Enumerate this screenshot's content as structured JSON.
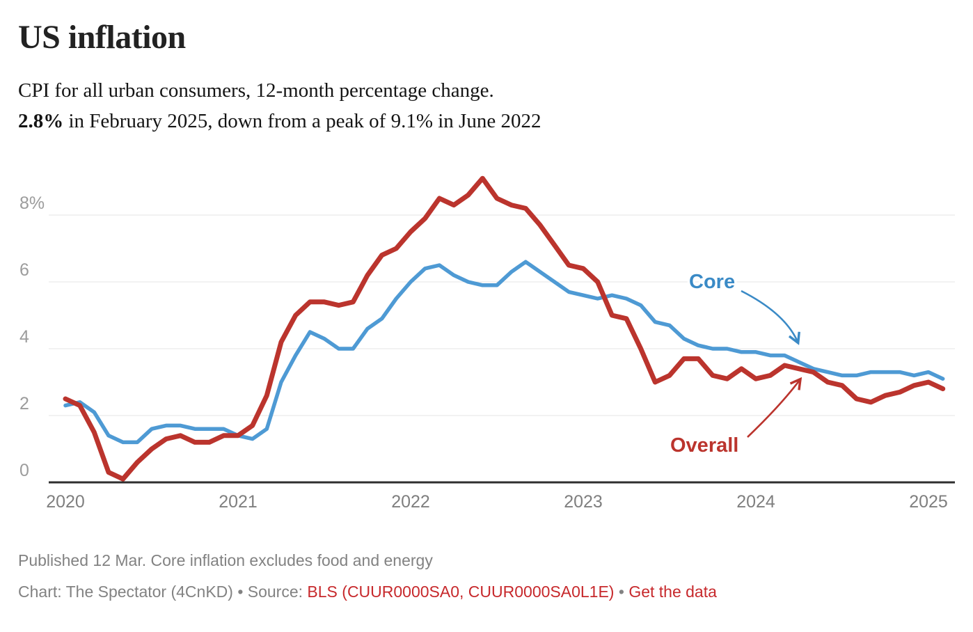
{
  "header": {
    "title": "US inflation",
    "subtitle_line1": "CPI for all urban consumers, 12-month percentage change.",
    "subtitle_bold": "2.8%",
    "subtitle_rest": " in February 2025, down from a peak of 9.1% in June 2022"
  },
  "chart_data": {
    "type": "line",
    "title": "US inflation",
    "subtitle": "CPI for all urban consumers, 12-month percentage change. 2.8% in February 2025, down from a peak of 9.1% in June 2022",
    "x_axis": {
      "interval": "monthly",
      "start": "2020-01",
      "end": "2025-02",
      "tick_labels": [
        "2020",
        "2021",
        "2022",
        "2023",
        "2024",
        "2025"
      ]
    },
    "y_axis": {
      "unit": "percent",
      "range": [
        0,
        9.3
      ],
      "ticks": [
        {
          "value": 8,
          "label": "8%"
        },
        {
          "value": 6,
          "label": "6"
        },
        {
          "value": 4,
          "label": "4"
        },
        {
          "value": 2,
          "label": "2"
        },
        {
          "value": 0,
          "label": "0"
        }
      ]
    },
    "grid": "horizontal",
    "legend_position": "inline-annotations",
    "series": [
      {
        "name": "Core",
        "color": "#4e9ad4",
        "values": [
          2.3,
          2.4,
          2.1,
          1.4,
          1.2,
          1.2,
          1.6,
          1.7,
          1.7,
          1.6,
          1.6,
          1.6,
          1.4,
          1.3,
          1.6,
          3.0,
          3.8,
          4.5,
          4.3,
          4.0,
          4.0,
          4.6,
          4.9,
          5.5,
          6.0,
          6.4,
          6.5,
          6.2,
          6.0,
          5.9,
          5.9,
          6.3,
          6.6,
          6.3,
          6.0,
          5.7,
          5.6,
          5.5,
          5.6,
          5.5,
          5.3,
          4.8,
          4.7,
          4.3,
          4.1,
          4.0,
          4.0,
          3.9,
          3.9,
          3.8,
          3.8,
          3.6,
          3.4,
          3.3,
          3.2,
          3.2,
          3.3,
          3.3,
          3.3,
          3.2,
          3.3,
          3.1
        ]
      },
      {
        "name": "Overall",
        "color": "#bb342d",
        "values": [
          2.5,
          2.3,
          1.5,
          0.3,
          0.1,
          0.6,
          1.0,
          1.3,
          1.4,
          1.2,
          1.2,
          1.4,
          1.4,
          1.7,
          2.6,
          4.2,
          5.0,
          5.4,
          5.4,
          5.3,
          5.4,
          6.2,
          6.8,
          7.0,
          7.5,
          7.9,
          8.5,
          8.3,
          8.6,
          9.1,
          8.5,
          8.3,
          8.2,
          7.7,
          7.1,
          6.5,
          6.4,
          6.0,
          5.0,
          4.9,
          4.0,
          3.0,
          3.2,
          3.7,
          3.7,
          3.2,
          3.1,
          3.4,
          3.1,
          3.2,
          3.5,
          3.4,
          3.3,
          3.0,
          2.9,
          2.5,
          2.4,
          2.6,
          2.7,
          2.9,
          3.0,
          2.8
        ]
      }
    ],
    "annotations": [
      {
        "label": "Core",
        "color": "#3a8ac6",
        "arrow": "curved, pointing down-right to Core line in 2024"
      },
      {
        "label": "Overall",
        "color": "#bb342d",
        "arrow": "curved, pointing up-right to Overall line in 2024"
      }
    ]
  },
  "footer": {
    "footnote": "Published 12 Mar. Core inflation excludes food and energy",
    "attribution_prefix": "Chart: The Spectator (4CnKD) • Source: ",
    "source_link": "BLS (CUUR0000SA0, CUUR0000SA0L1E)",
    "separator": " • ",
    "data_link": "Get the data"
  }
}
